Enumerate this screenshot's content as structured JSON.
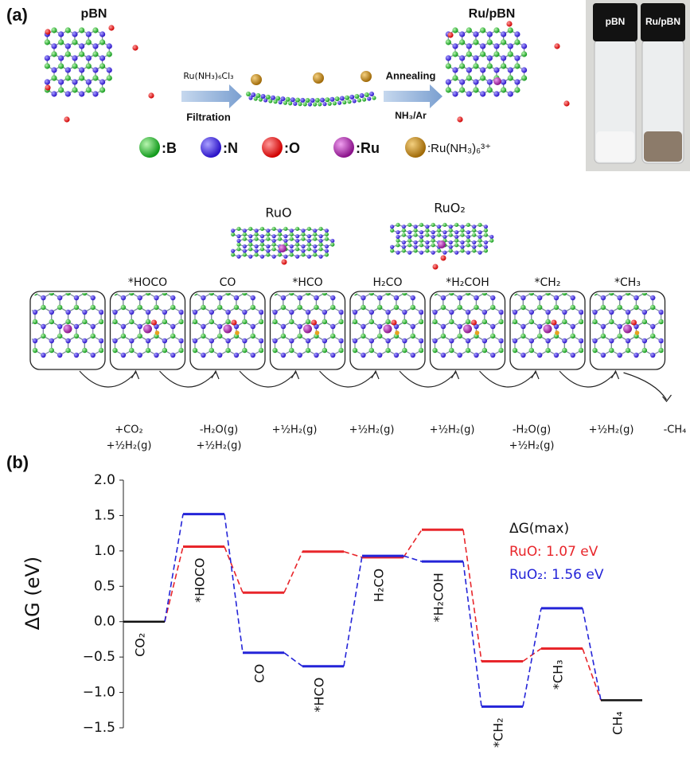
{
  "panel_a": {
    "label": "(a)",
    "left_title": "pBN",
    "right_title": "Ru/pBN",
    "step1_top": "Ru(NH₃)₆Cl₃",
    "step1_bottom": "Filtration",
    "step2_top": "Annealing",
    "step2_bottom": "NH₃/Ar",
    "legend": [
      ":B",
      ":N",
      ":O",
      ":Ru",
      ":Ru(NH₃)₆³⁺"
    ],
    "vials": [
      "pBN",
      "Ru/pBN"
    ]
  },
  "mechanism": {
    "models": [
      "RuO",
      "RuO₂"
    ],
    "steps": [
      "*HOCO",
      "CO",
      "*HCO",
      "H₂CO",
      "*H₂COH",
      "*CH₂",
      "*CH₃"
    ],
    "annotations": [
      [
        "+CO₂",
        "+½H₂(g)"
      ],
      [
        "-H₂O(g)",
        "+½H₂(g)"
      ],
      [
        "+½H₂(g)"
      ],
      [
        "+½H₂(g)"
      ],
      [
        "+½H₂(g)"
      ],
      [
        "-H₂O(g)",
        "+½H₂(g)"
      ],
      [
        "+½H₂(g)"
      ],
      [
        "-CH₄"
      ]
    ]
  },
  "chart_data": {
    "type": "energy",
    "panel_label": "(b)",
    "y_label": "ΔG (eV)",
    "legend_title": "ΔG(max)",
    "categories": [
      "CO₂",
      "*HOCO",
      "CO",
      "*HCO",
      "H₂CO",
      "*H₂COH",
      "*CH₂",
      "*CH₃",
      "CH₄"
    ],
    "series": [
      {
        "name": "RuO: 1.07 eV",
        "color": "#e8262b",
        "values": [
          0,
          1.06,
          0.41,
          0.99,
          0.91,
          1.3,
          -0.56,
          -0.38,
          -1.11
        ]
      },
      {
        "name": "RuO₂: 1.56 eV",
        "color": "#2424d8",
        "values": [
          0,
          1.52,
          -0.44,
          -0.63,
          0.93,
          0.85,
          -1.2,
          0.19,
          -1.11
        ]
      }
    ],
    "ylim": [
      -1.5,
      2
    ],
    "yticks": [
      {
        "value": -1.5,
        "label": "−1.5"
      },
      {
        "value": -1,
        "label": "−1.0"
      },
      {
        "value": -0.5,
        "label": "−0.5"
      },
      {
        "value": 0,
        "label": "0.0"
      },
      0.5,
      {
        "value": 1,
        "label": "1.0"
      },
      {
        "value": 1.5,
        "label": "1.5"
      },
      {
        "value": 2,
        "label": "2.0"
      }
    ]
  }
}
